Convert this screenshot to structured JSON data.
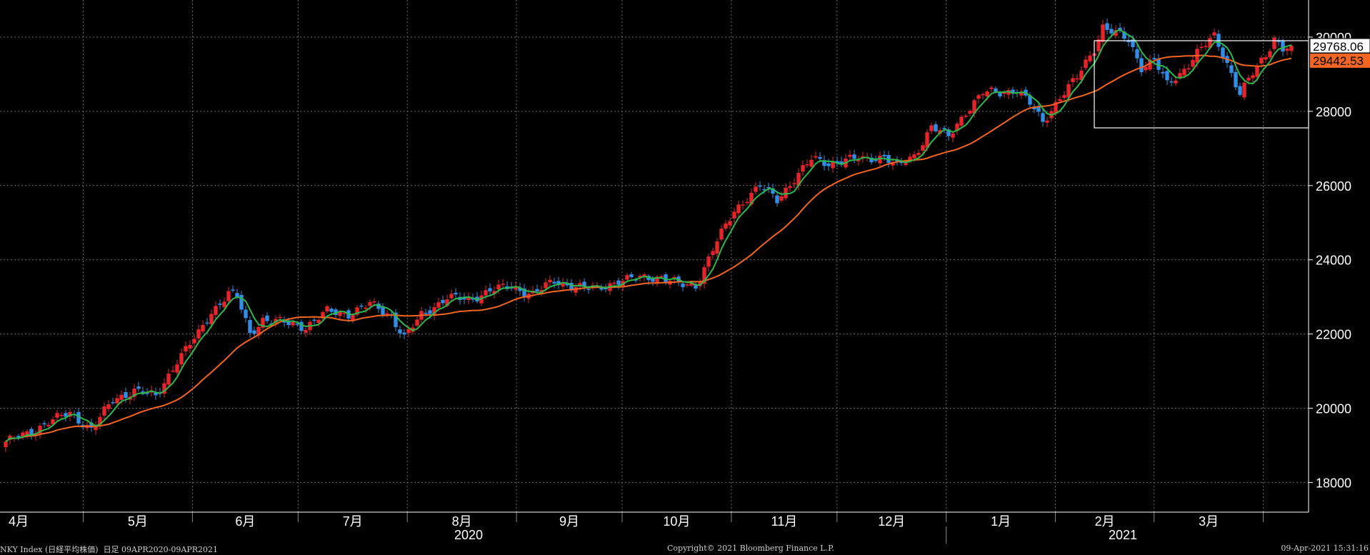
{
  "chart_data": {
    "type": "candlestick",
    "ylim": [
      17200,
      31000
    ],
    "y_ticks": [
      "18000",
      "20000",
      "22000",
      "24000",
      "26000",
      "28000",
      "30000"
    ],
    "grid": true,
    "x_month_labels": [
      "4月",
      "5月",
      "6月",
      "7月",
      "8月",
      "9月",
      "10月",
      "11月",
      "12月",
      "1月",
      "2月",
      "3月"
    ],
    "x_year_labels": [
      "2020",
      "2021"
    ],
    "last_price_label": "29768.06",
    "ma_label": "29442.53",
    "colors": {
      "up": "#e8232a",
      "down": "#2f8fe8",
      "ma_short": "#2db84a",
      "ma_long": "#f26522",
      "grid": "#6a6a6a",
      "axis": "#ffffff",
      "last_price_bg": "#ffffff",
      "ma_label_bg": "#f26522"
    }
  },
  "footer": {
    "left": "NKY Index (日経平均株価)  日足 09APR2020-09APR2021",
    "center": "Copyright© 2021 Bloomberg Finance L.P.",
    "right": "09-Apr-2021 15:31:16"
  }
}
